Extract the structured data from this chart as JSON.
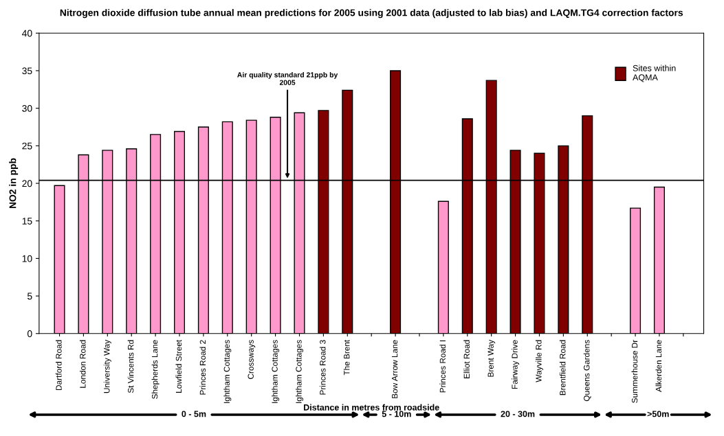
{
  "chart_data": {
    "type": "bar",
    "title": "Nitrogen dioxide diffusion tube annual mean predictions for 2005 using 2001 data (adjusted to lab bias) and LAQM.TG4 correction factors",
    "xlabel": "Distance in metres from roadside",
    "ylabel": "NO2 in ppb",
    "categories": [
      "Dartford Road",
      "London Road",
      "University Way",
      "St Vincents Rd",
      "Shepherds Lane",
      "Lowfield Street",
      "Princes Road 2",
      "Ightham Cottages",
      "Crossways",
      "Ightham Cottages",
      "Ightham Cottages",
      "Princes Road 3",
      "The Brent",
      null,
      "Bow Arrow Lane",
      null,
      "Princes Road I",
      "Elliot Road",
      "Brent Way",
      "Fairway Drive",
      "Wayville Rd",
      "Brentfield Road",
      "Queens Gardens",
      null,
      "Summerhouse Dr",
      "Alkerden Lane",
      null
    ],
    "series": [
      {
        "color": "#ff99cc",
        "values": [
          19.7,
          23.8,
          24.4,
          24.6,
          26.5,
          26.9,
          27.5,
          28.2,
          28.4,
          28.8,
          29.4,
          null,
          null,
          null,
          null,
          null,
          17.6,
          null,
          null,
          null,
          null,
          null,
          null,
          null,
          16.7,
          19.5,
          null
        ]
      },
      {
        "name": "Sites within AQMA",
        "color": "#800000",
        "values": [
          null,
          null,
          null,
          null,
          null,
          null,
          null,
          null,
          null,
          null,
          null,
          29.7,
          32.4,
          null,
          35.0,
          null,
          null,
          28.6,
          33.7,
          24.4,
          24.0,
          25.0,
          29.0,
          null,
          null,
          null,
          null
        ]
      }
    ],
    "ylim": [
      0,
      40
    ],
    "yticks": [
      0,
      5,
      10,
      15,
      20,
      25,
      30,
      35,
      40
    ],
    "ref_lines": [
      {
        "axis": "y",
        "value": 20.4,
        "label": "Air quality standard 21ppb by\n2005",
        "color": "#000000"
      }
    ],
    "annotations": [
      "0 - 5m",
      "5 - 10m",
      "20 - 30m",
      ">50m"
    ],
    "grid": false,
    "legend": "top right"
  }
}
